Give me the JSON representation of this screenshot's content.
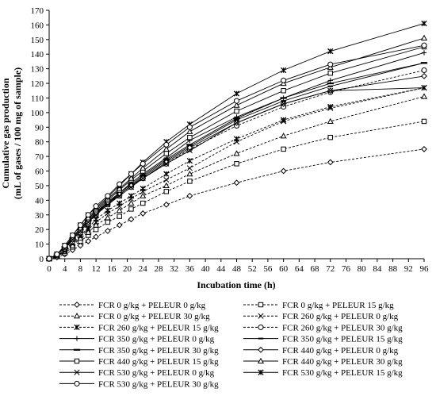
{
  "chart_data": {
    "type": "line",
    "xlabel": "Incubation time (h)",
    "ylabel_line1": "Cumulative gas production",
    "ylabel_line2": "(mL of gases / 100 mg of sample)",
    "xlim": [
      0,
      96
    ],
    "ylim": [
      0,
      170
    ],
    "xticks": [
      0,
      4,
      8,
      12,
      16,
      20,
      24,
      28,
      32,
      36,
      40,
      44,
      48,
      52,
      56,
      60,
      64,
      68,
      72,
      76,
      80,
      84,
      88,
      92,
      96
    ],
    "yticks": [
      0,
      10,
      20,
      30,
      40,
      50,
      60,
      70,
      80,
      90,
      100,
      110,
      120,
      130,
      140,
      150,
      160,
      170
    ],
    "grid": false,
    "legend_position": "bottom",
    "x": [
      0,
      2,
      4,
      6,
      8,
      10,
      12,
      15,
      18,
      21,
      24,
      30,
      36,
      48,
      60,
      72,
      96
    ],
    "series": [
      {
        "name": "FCR 0 g/kg + PELEUR 0 g/kg",
        "marker": "diamond",
        "dash": "dashed",
        "values": [
          0,
          1,
          3,
          6,
          9,
          12,
          15,
          19,
          23,
          27,
          31,
          37,
          43,
          52,
          60,
          66,
          75
        ]
      },
      {
        "name": "FCR 0 g/kg + PELEUR 15 g/kg",
        "marker": "square",
        "dash": "dashed",
        "values": [
          0,
          2,
          4,
          8,
          12,
          16,
          20,
          25,
          29,
          34,
          38,
          46,
          53,
          65,
          75,
          83,
          94
        ]
      },
      {
        "name": "FCR 0 g/kg + PELEUR 30 g/kg",
        "marker": "triangle",
        "dash": "dashed",
        "values": [
          0,
          2,
          5,
          9,
          14,
          18,
          23,
          28,
          33,
          38,
          43,
          50,
          58,
          72,
          84,
          94,
          111
        ]
      },
      {
        "name": "FCR 260 g/kg + PELEUR 0 g/kg",
        "marker": "x",
        "dash": "dashed",
        "values": [
          0,
          2,
          5,
          10,
          15,
          20,
          25,
          31,
          36,
          41,
          46,
          54,
          62,
          80,
          94,
          103,
          117
        ]
      },
      {
        "name": "FCR 260 g/kg + PELEUR 15 g/kg",
        "marker": "asterisk",
        "dash": "dashed",
        "values": [
          0,
          2,
          6,
          11,
          16,
          21,
          27,
          33,
          38,
          43,
          48,
          58,
          67,
          82,
          95,
          104,
          117
        ]
      },
      {
        "name": "FCR 260 g/kg + PELEUR 30 g/kg",
        "marker": "circle",
        "dash": "dashed",
        "values": [
          0,
          3,
          7,
          12,
          18,
          24,
          30,
          37,
          43,
          49,
          55,
          65,
          75,
          91,
          104,
          114,
          129
        ]
      },
      {
        "name": "FCR 350 g/kg + PELEUR 0 g/kg",
        "marker": "plus",
        "dash": "solid",
        "values": [
          0,
          3,
          8,
          14,
          20,
          26,
          32,
          38,
          45,
          52,
          58,
          69,
          81,
          97,
          110,
          122,
          141
        ]
      },
      {
        "name": "FCR 350 g/kg + PELEUR 15 g/kg",
        "marker": "dash",
        "dash": "solid",
        "values": [
          0,
          3,
          7,
          13,
          19,
          25,
          31,
          37,
          44,
          50,
          56,
          67,
          77,
          95,
          108,
          118,
          134
        ]
      },
      {
        "name": "FCR 350 g/kg + PELEUR 30 g/kg",
        "marker": "longdash",
        "dash": "solid",
        "values": [
          0,
          3,
          8,
          14,
          20,
          26,
          32,
          39,
          45,
          51,
          57,
          68,
          78,
          96,
          110,
          120,
          134
        ]
      },
      {
        "name": "FCR 440 g/kg + PELEUR 0 g/kg",
        "marker": "diamond",
        "dash": "solid",
        "values": [
          0,
          3,
          8,
          13,
          19,
          25,
          31,
          38,
          44,
          50,
          55,
          66,
          76,
          93,
          106,
          115,
          125
        ]
      },
      {
        "name": "FCR 440 g/kg + PELEUR 15 g/kg",
        "marker": "square",
        "dash": "solid",
        "values": [
          0,
          3,
          8,
          14,
          20,
          27,
          33,
          40,
          47,
          54,
          60,
          72,
          83,
          101,
          115,
          127,
          145
        ]
      },
      {
        "name": "FCR 440 g/kg + PELEUR 30 g/kg",
        "marker": "triangle",
        "dash": "solid",
        "values": [
          0,
          3,
          8,
          15,
          21,
          28,
          34,
          41,
          48,
          55,
          62,
          75,
          87,
          105,
          120,
          131,
          151
        ]
      },
      {
        "name": "FCR 530 g/kg + PELEUR 0 g/kg",
        "marker": "x",
        "dash": "solid",
        "values": [
          0,
          3,
          7,
          13,
          19,
          25,
          30,
          37,
          43,
          49,
          55,
          65,
          74,
          93,
          106,
          115,
          117
        ]
      },
      {
        "name": "FCR 530 g/kg + PELEUR 15 g/kg",
        "marker": "asterisk",
        "dash": "solid",
        "values": [
          0,
          3,
          9,
          16,
          23,
          30,
          35,
          42,
          50,
          58,
          66,
          80,
          92,
          113,
          129,
          142,
          161
        ]
      },
      {
        "name": "FCR 530 g/kg + PELEUR 30 g/kg",
        "marker": "circle",
        "dash": "solid",
        "values": [
          0,
          3,
          9,
          16,
          23,
          30,
          36,
          43,
          51,
          58,
          65,
          78,
          90,
          108,
          122,
          133,
          146
        ]
      }
    ]
  }
}
